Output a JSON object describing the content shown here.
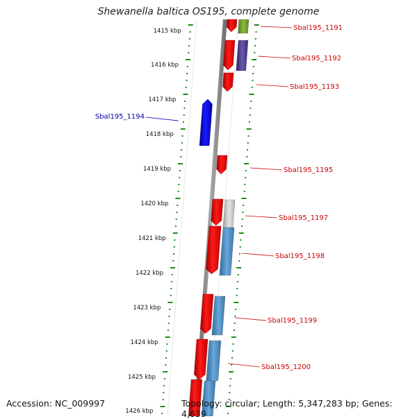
{
  "title": "Shewanella baltica OS195, complete genome",
  "accession": "Accession: NC_009997",
  "topology": "Topology: circular; Length: 5,347,283 bp; Genes: 4,639",
  "kbp_labels": [
    "1415 kbp",
    "1416 kbp",
    "1417 kbp",
    "1418 kbp",
    "1419 kbp",
    "1420 kbp",
    "1421 kbp",
    "1422 kbp",
    "1423 kbp",
    "1424 kbp",
    "1425 kbp",
    "1426 kbp"
  ],
  "gene_labels": [
    {
      "text": "Sbal195_1191",
      "strand": "plus"
    },
    {
      "text": "Sbal195_1192",
      "strand": "plus"
    },
    {
      "text": "Sbal195_1193",
      "strand": "plus"
    },
    {
      "text": "Sbal195_1194",
      "strand": "minus"
    },
    {
      "text": "Sbal195_1195",
      "strand": "plus"
    },
    {
      "text": "Sbal195_1197",
      "strand": "plus"
    },
    {
      "text": "Sbal195_1198",
      "strand": "plus"
    },
    {
      "text": "Sbal195_1199",
      "strand": "plus"
    },
    {
      "text": "Sbal195_1200",
      "strand": "plus"
    }
  ],
  "colors": {
    "plus_label": "#cc0000",
    "minus_label": "#0000aa",
    "tick": "#1a8a1a",
    "backbone": "#808080",
    "gene_red": "#ee0000",
    "gene_blue": "#0000ee",
    "cds_blue": "#4a86c0",
    "cds_gray": "#b8b8b8",
    "cds_green": "#6a9a2a",
    "cds_purple": "#4a3a8a"
  }
}
